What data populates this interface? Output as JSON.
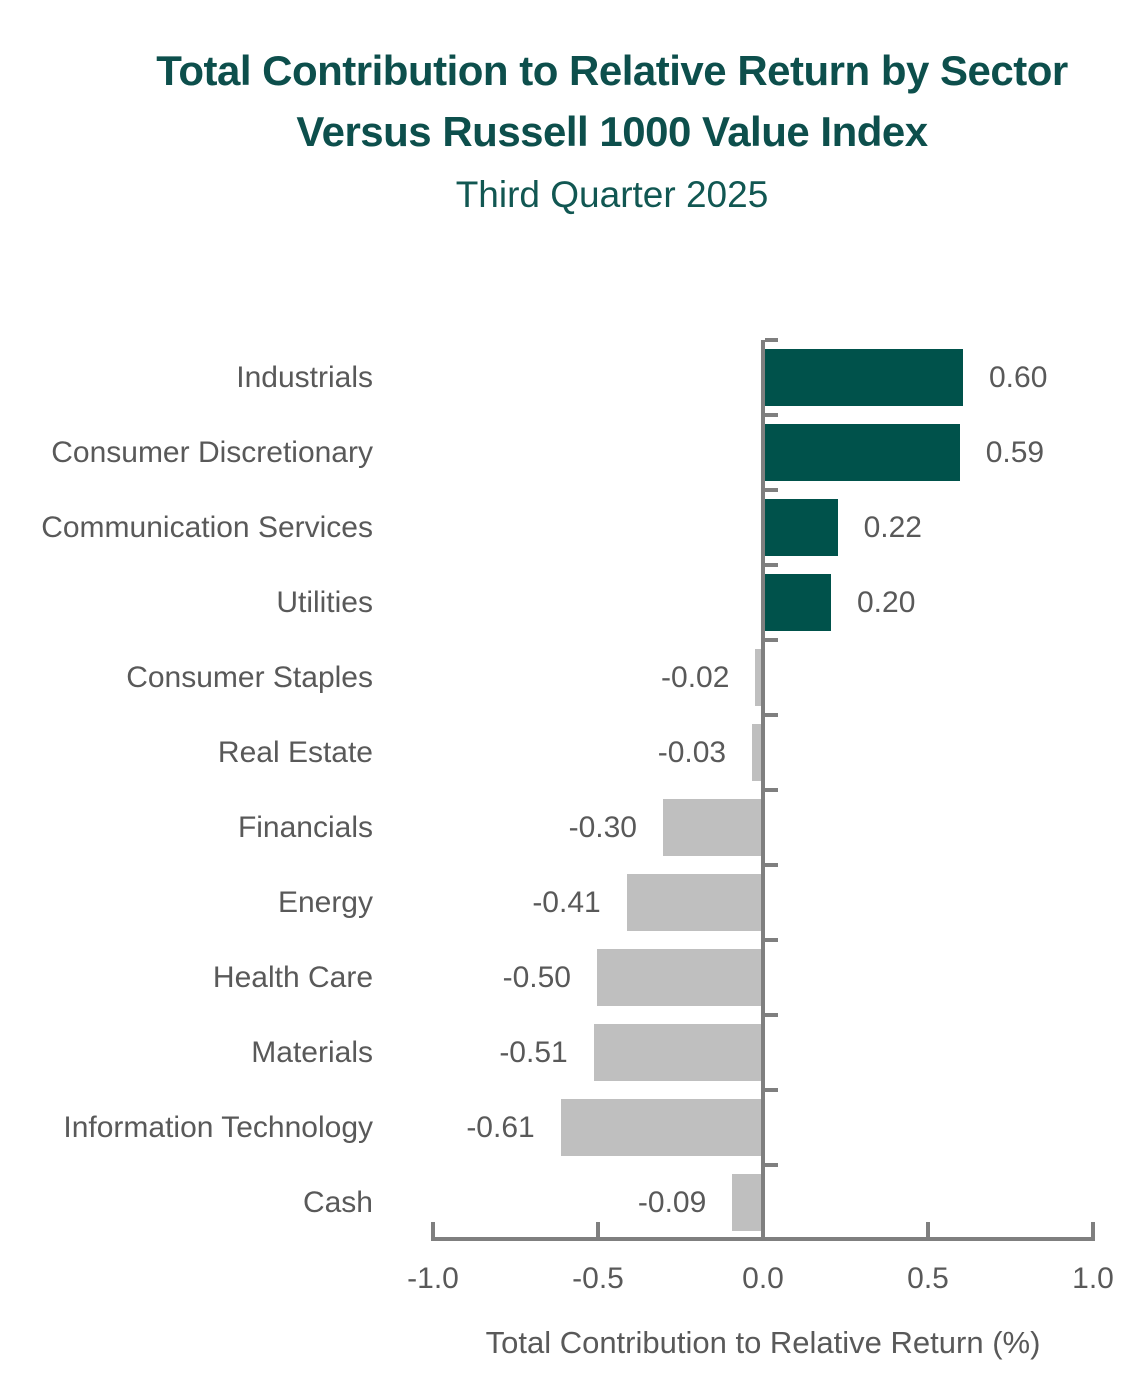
{
  "title": {
    "line1": "Total Contribution to Relative Return by Sector",
    "line2": "Versus Russell 1000 Value Index",
    "subtitle": "Third Quarter 2025"
  },
  "chart_data": {
    "type": "bar",
    "orientation": "horizontal",
    "categories": [
      "Industrials",
      "Consumer Discretionary",
      "Communication Services",
      "Utilities",
      "Consumer Staples",
      "Real Estate",
      "Financials",
      "Energy",
      "Health Care",
      "Materials",
      "Information Technology",
      "Cash"
    ],
    "values": [
      0.6,
      0.59,
      0.22,
      0.2,
      -0.02,
      -0.03,
      -0.3,
      -0.41,
      -0.5,
      -0.51,
      -0.61,
      -0.09
    ],
    "value_labels": [
      "0.60",
      "0.59",
      "0.22",
      "0.20",
      "-0.02",
      "-0.03",
      "-0.30",
      "-0.41",
      "-0.50",
      "-0.51",
      "-0.61",
      "-0.09"
    ],
    "xlabel": "Total Contribution to Relative Return (%)",
    "xlim": [
      -1.0,
      1.0
    ],
    "x_tick_values": [
      -1.0,
      -0.5,
      0.0,
      0.5,
      1.0
    ],
    "x_tick_labels": [
      "-1.0",
      "-0.5",
      "0.0",
      "0.5",
      "1.0"
    ],
    "grid": false,
    "legend": false,
    "colors": {
      "positive_bar": "#00524b",
      "negative_bar": "#bfbfbf",
      "axis": "#7f7f7f",
      "text": "#595959",
      "title": "#0d4f4c"
    }
  }
}
